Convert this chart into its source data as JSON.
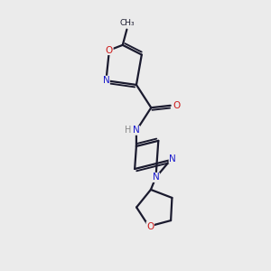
{
  "background_color": "#ebebeb",
  "bond_color": "#1a1a2e",
  "N_color": "#1a1acc",
  "O_color": "#cc1a1a",
  "lw": 1.6,
  "figsize": [
    3.0,
    3.0
  ],
  "dpi": 100,
  "xlim": [
    0,
    10
  ],
  "ylim": [
    0,
    10
  ]
}
